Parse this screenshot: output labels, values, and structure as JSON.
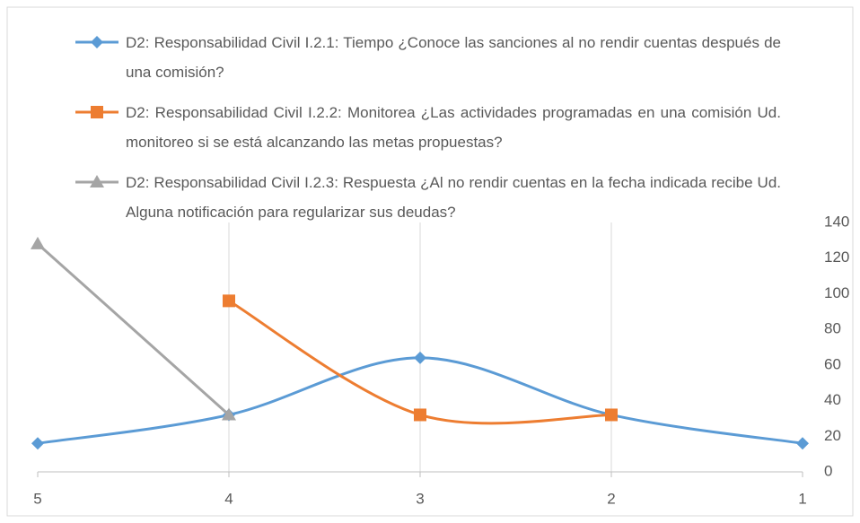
{
  "chart_data": {
    "type": "line",
    "categories": [
      "5",
      "4",
      "3",
      "2",
      "1"
    ],
    "series": [
      {
        "name": "D2: Responsabilidad Civil I.2.1: Tiempo ¿Conoce las sanciones al no rendir cuentas después de una comisión?",
        "color": "#5b9bd5",
        "marker": "diamond",
        "values": [
          16,
          32,
          64,
          32,
          16
        ]
      },
      {
        "name": "D2: Responsabilidad Civil I.2.2: Monitorea ¿Las actividades programadas en una comisión Ud. monitoreo si se está alcanzando las metas propuestas?",
        "color": "#ed7d31",
        "marker": "square",
        "values": [
          null,
          96,
          32,
          32,
          null
        ]
      },
      {
        "name": "D2: Responsabilidad Civil I.2.3: Respuesta ¿Al no rendir cuentas en la fecha indicada recibe Ud. Alguna notificación para regularizar sus deudas?",
        "color": "#a5a5a5",
        "marker": "triangle",
        "values": [
          128,
          32,
          null,
          null,
          null
        ]
      }
    ],
    "ylim": [
      0,
      140
    ],
    "yticks": [
      0,
      20,
      40,
      60,
      80,
      100,
      120,
      140
    ],
    "y_axis_side": "right",
    "smooth": true,
    "xgrid": true,
    "legend": "top"
  }
}
